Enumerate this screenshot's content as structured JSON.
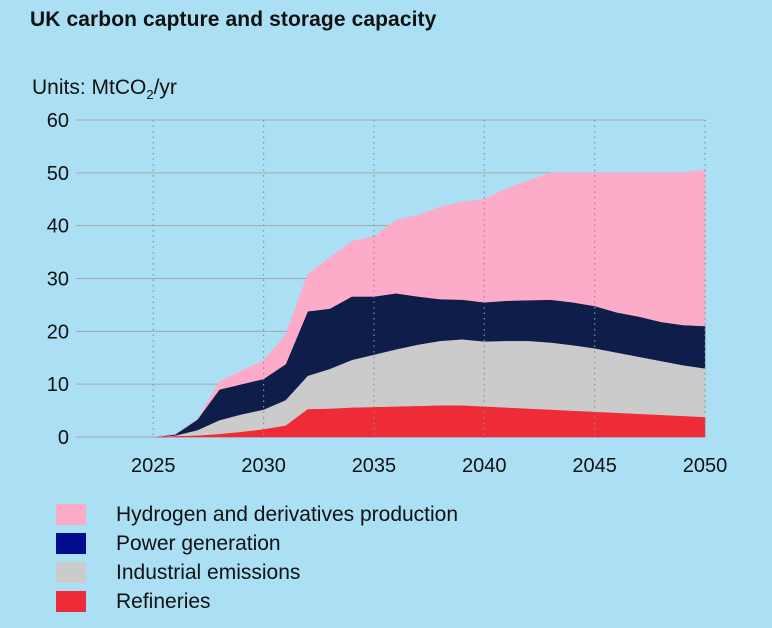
{
  "header": {
    "title": "UK carbon capture and storage capacity",
    "units_prefix": "Units: MtCO",
    "units_sub": "2",
    "units_suffix": "/yr"
  },
  "chart_data": {
    "type": "area",
    "stacked": true,
    "title": "UK carbon capture and storage capacity",
    "ylabel": "Units: MtCO2/yr",
    "xlabel": "",
    "xlim": [
      2021.5,
      2050
    ],
    "ylim": [
      0,
      60
    ],
    "x_ticks": [
      2025,
      2030,
      2035,
      2040,
      2045,
      2050
    ],
    "y_ticks": [
      0,
      10,
      20,
      30,
      40,
      50,
      60
    ],
    "x_tick_labels": [
      "2025",
      "2030",
      "2035",
      "2040",
      "2045",
      "2050"
    ],
    "y_tick_labels": [
      "0",
      "10",
      "20",
      "30",
      "40",
      "50",
      "60"
    ],
    "grid": "horizontal solid, vertical dotted",
    "legend_position": "bottom-left",
    "x": [
      2025,
      2026,
      2027,
      2028,
      2029,
      2030,
      2031,
      2032,
      2033,
      2034,
      2035,
      2036,
      2037,
      2038,
      2039,
      2040,
      2041,
      2042,
      2043,
      2044,
      2045,
      2046,
      2047,
      2048,
      2049,
      2050
    ],
    "series": [
      {
        "name": "Refineries",
        "color": "#ee2b36",
        "values": [
          0,
          0.2,
          0.3,
          0.6,
          1.0,
          1.5,
          2.2,
          5.3,
          5.4,
          5.6,
          5.7,
          5.8,
          5.9,
          6.0,
          6.0,
          5.8,
          5.6,
          5.4,
          5.2,
          5.0,
          4.8,
          4.6,
          4.4,
          4.2,
          4.0,
          3.8
        ]
      },
      {
        "name": "Industrial emissions",
        "color": "#cbcbcb",
        "values": [
          0,
          0.1,
          1.0,
          2.6,
          3.3,
          3.7,
          4.8,
          6.3,
          7.5,
          9.0,
          9.9,
          10.8,
          11.6,
          12.2,
          12.5,
          12.3,
          12.6,
          12.8,
          12.7,
          12.4,
          12.0,
          11.4,
          10.8,
          10.2,
          9.6,
          9.2
        ]
      },
      {
        "name": "Power generation",
        "color": "#0f1d4a",
        "values": [
          0,
          0.2,
          2.0,
          5.8,
          5.7,
          5.8,
          6.8,
          12.2,
          11.4,
          12.0,
          11.0,
          10.6,
          9.1,
          7.9,
          7.5,
          7.4,
          7.6,
          7.7,
          8.1,
          8.1,
          8.0,
          7.6,
          7.6,
          7.4,
          7.6,
          8.0
        ]
      },
      {
        "name": "Hydrogen and derivatives production",
        "color": "#fcacc8",
        "values": [
          0,
          0,
          0,
          1.5,
          2.5,
          3.5,
          5.5,
          7.0,
          9.7,
          10.4,
          11.4,
          13.8,
          15.4,
          17.4,
          18.5,
          19.5,
          21.2,
          22.6,
          24.0,
          24.5,
          25.2,
          26.4,
          27.2,
          28.2,
          28.8,
          29.6
        ]
      }
    ]
  },
  "legend": {
    "items": [
      {
        "label": "Hydrogen and derivatives production",
        "color": "#fcacc8"
      },
      {
        "label": "Power generation",
        "color": "#010c8c"
      },
      {
        "label": "Industrial emissions",
        "color": "#cbcbcb"
      },
      {
        "label": "Refineries",
        "color": "#ee2b36"
      }
    ]
  }
}
